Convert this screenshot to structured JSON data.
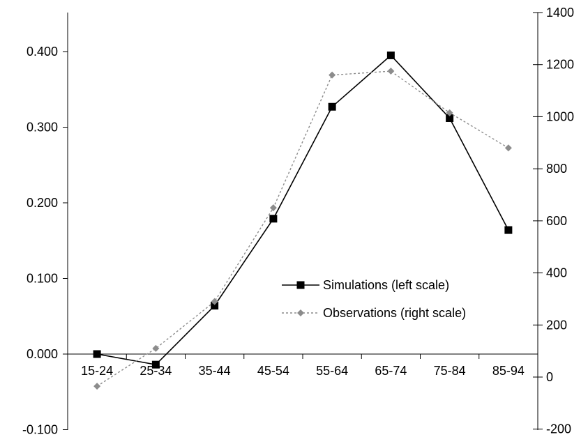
{
  "chart_data": {
    "type": "line",
    "categories": [
      "15-24",
      "25-34",
      "35-44",
      "45-54",
      "55-64",
      "65-74",
      "75-84",
      "85-94"
    ],
    "left_axis": {
      "ylim": [
        -0.1,
        0.45
      ],
      "ticks": [
        -0.1,
        0.0,
        0.1,
        0.2,
        0.3,
        0.4
      ],
      "tick_labels": [
        "-0.100",
        "0.000",
        "0.100",
        "0.200",
        "0.300",
        "0.400"
      ]
    },
    "right_axis": {
      "ylim": [
        -200,
        1400
      ],
      "ticks": [
        -200,
        0,
        200,
        400,
        600,
        800,
        1000,
        1200,
        1400
      ],
      "tick_labels": [
        "-200",
        "0",
        "200",
        "400",
        "600",
        "800",
        "1000",
        "1200",
        "1400"
      ]
    },
    "series": [
      {
        "name": "Simulations (left scale)",
        "axis": "left",
        "style": "solid",
        "marker": "square",
        "color": "#000000",
        "values": [
          0.0,
          -0.014,
          0.064,
          0.179,
          0.327,
          0.395,
          0.312,
          0.164
        ]
      },
      {
        "name": "Observations (right scale)",
        "axis": "right",
        "style": "dotted",
        "marker": "diamond",
        "color": "#8c8c8c",
        "values": [
          -35,
          110,
          290,
          650,
          1160,
          1175,
          1015,
          880
        ]
      }
    ],
    "grid": false,
    "legend_position": "center-right"
  }
}
